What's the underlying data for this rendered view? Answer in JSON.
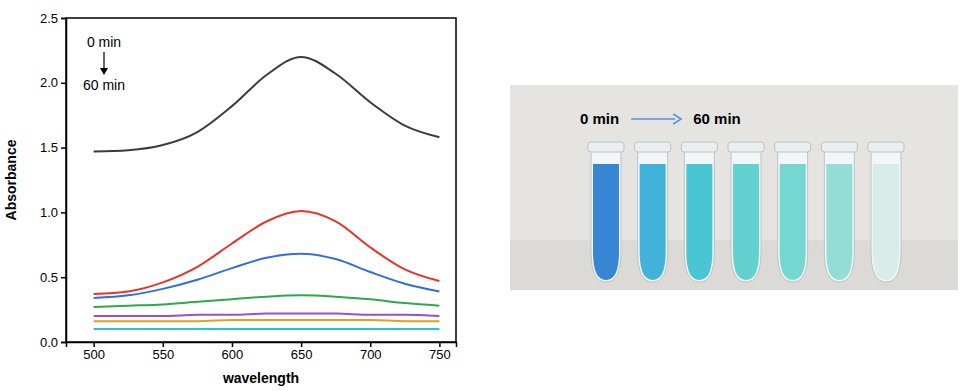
{
  "chart_data": {
    "type": "line",
    "x_label": "wavelength",
    "y_label": "Absorbance",
    "annotations": [
      "0 min",
      "60 min"
    ],
    "x": [
      500,
      525,
      550,
      575,
      600,
      625,
      650,
      675,
      700,
      725,
      750
    ],
    "series": [
      {
        "color": "#3c3c3c",
        "values": [
          1.47,
          1.48,
          1.52,
          1.62,
          1.82,
          2.06,
          2.2,
          2.07,
          1.85,
          1.67,
          1.58
        ]
      },
      {
        "color": "#e8332a",
        "values": [
          0.37,
          0.39,
          0.46,
          0.58,
          0.76,
          0.93,
          1.01,
          0.93,
          0.73,
          0.56,
          0.47
        ]
      },
      {
        "color": "#2f6fdc",
        "values": [
          0.34,
          0.36,
          0.41,
          0.48,
          0.57,
          0.65,
          0.68,
          0.64,
          0.54,
          0.45,
          0.39
        ]
      },
      {
        "color": "#2ea84a",
        "values": [
          0.27,
          0.28,
          0.29,
          0.31,
          0.33,
          0.35,
          0.36,
          0.35,
          0.33,
          0.3,
          0.28
        ]
      },
      {
        "color": "#9a4fd0",
        "values": [
          0.2,
          0.2,
          0.2,
          0.21,
          0.21,
          0.22,
          0.22,
          0.22,
          0.21,
          0.21,
          0.2
        ]
      },
      {
        "color": "#e0a020",
        "values": [
          0.16,
          0.16,
          0.16,
          0.16,
          0.17,
          0.17,
          0.17,
          0.17,
          0.17,
          0.16,
          0.16
        ]
      },
      {
        "color": "#1fc8d8",
        "values": [
          0.1,
          0.1,
          0.1,
          0.1,
          0.1,
          0.1,
          0.1,
          0.1,
          0.1,
          0.1,
          0.1
        ]
      }
    ],
    "xlim": [
      480,
      762
    ],
    "xticks": [
      500,
      550,
      600,
      650,
      700,
      750
    ],
    "ylim": [
      0,
      2.5
    ],
    "yticks": [
      {
        "value": 0,
        "label": "0.0"
      },
      {
        "value": 0.5,
        "label": "0.5"
      },
      {
        "value": 1,
        "label": "1.0"
      },
      {
        "value": 1.5,
        "label": "1.5"
      },
      {
        "value": 2,
        "label": "2.0"
      },
      {
        "value": 2.5,
        "label": "2.5"
      }
    ],
    "grid": false
  },
  "photo": {
    "start_label": "0 min",
    "end_label": "60 min",
    "tube_colors": [
      "#2b7fd2",
      "#39aed9",
      "#40c2d2",
      "#5ccfcf",
      "#6fd4d0",
      "#8edbd5",
      "#d6ece8"
    ]
  }
}
